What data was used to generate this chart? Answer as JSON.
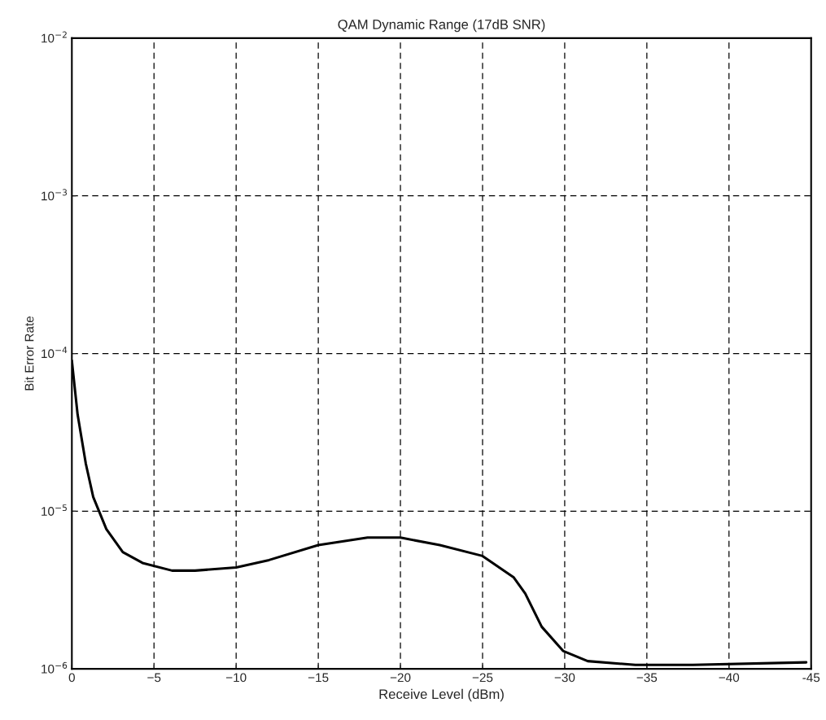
{
  "chart_data": {
    "type": "line",
    "title": "QAM Dynamic Range (17dB SNR)",
    "xlabel": "Receive Level (dBm)",
    "ylabel": "Bit Error Rate",
    "x": [
      0,
      -0.35,
      -0.85,
      -1.3,
      -2.1,
      -3.1,
      -4.3,
      -6.1,
      -7.5,
      -10,
      -12,
      -15,
      -18,
      -20,
      -22.4,
      -25,
      -26.9,
      -27.6,
      -28.6,
      -29.9,
      -31.4,
      -34.3,
      -37.8,
      -44.7
    ],
    "series": [
      {
        "color": "#000000",
        "values": [
          9e-05,
          4.1e-05,
          2e-05,
          1.23e-05,
          7.7e-06,
          5.5e-06,
          4.7e-06,
          4.2e-06,
          4.2e-06,
          4.4e-06,
          4.9e-06,
          6.1e-06,
          6.8e-06,
          6.8e-06,
          6.1e-06,
          5.2e-06,
          3.8e-06,
          3e-06,
          1.85e-06,
          1.3e-06,
          1.12e-06,
          1.06e-06,
          1.06e-06,
          1.1e-06
        ]
      }
    ],
    "log": "y",
    "xlim": [
      0,
      -45
    ],
    "ylim": [
      1e-06,
      0.01
    ],
    "xticks": [
      0,
      {
        "value": -5,
        "label": "−5"
      },
      {
        "value": -10,
        "label": "−10"
      },
      {
        "value": -15,
        "label": "−15"
      },
      {
        "value": -20,
        "label": "−20"
      },
      {
        "value": -25,
        "label": "−25"
      },
      {
        "value": -30,
        "label": "−30"
      },
      {
        "value": -35,
        "label": "−35"
      },
      {
        "value": -40,
        "label": "−40"
      },
      {
        "value": -45,
        "label": "-45"
      }
    ],
    "yticks": [
      {
        "value": 1e-06,
        "label": "10$^{−6}$"
      },
      {
        "value": 1e-05,
        "label": "10$^{−5}$"
      },
      {
        "value": 0.0001,
        "label": "10$^{−4}$"
      },
      {
        "value": 0.001,
        "label": "10$^{−3}$"
      },
      {
        "value": 0.01,
        "label": "10$^{−2}$"
      }
    ],
    "grid": true,
    "line_style": "solid"
  }
}
